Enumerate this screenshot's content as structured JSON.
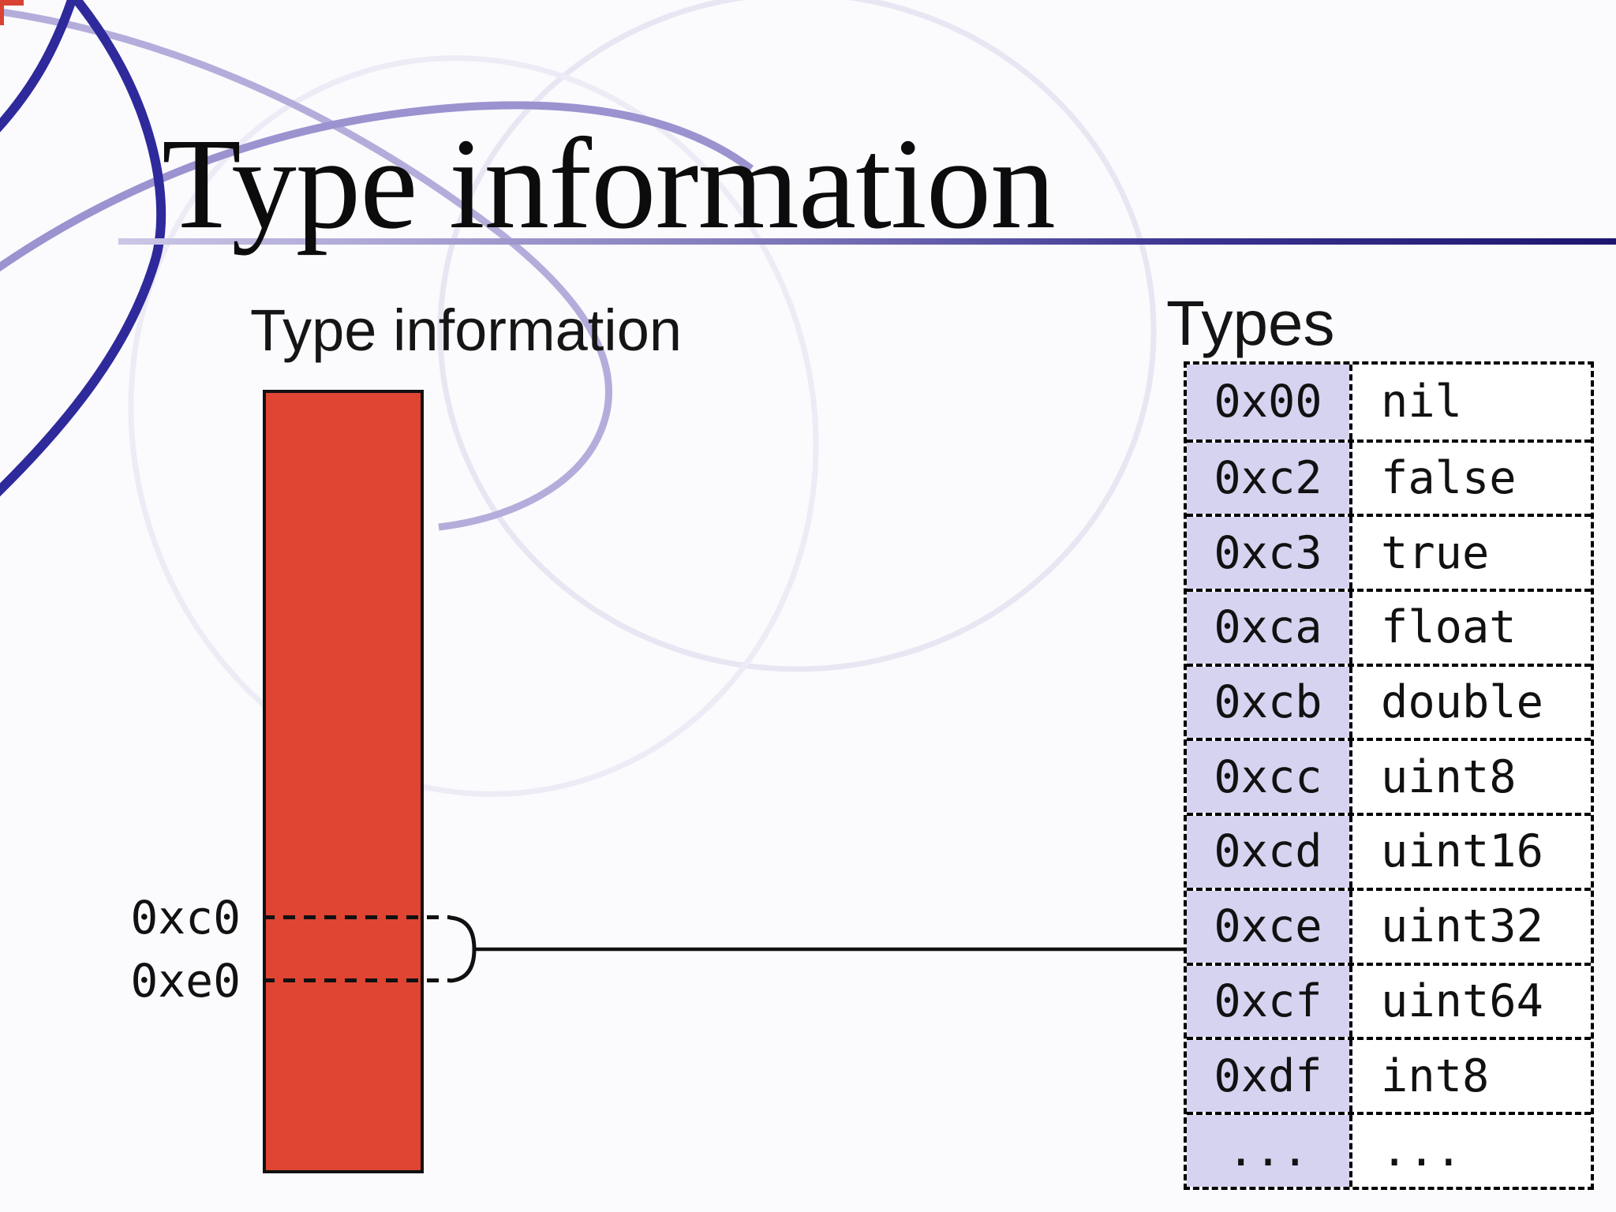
{
  "slide": {
    "title": "Type information"
  },
  "memory": {
    "label": "Type information",
    "bar_color": "#df4532",
    "markers": [
      {
        "label": "0xc0"
      },
      {
        "label": "0xe0"
      }
    ]
  },
  "types": {
    "heading": "Types",
    "code_bg": "#d6d3f0",
    "columns": [
      "code",
      "name"
    ],
    "rows": [
      {
        "code": "0x00",
        "name": "nil"
      },
      {
        "code": "0xc2",
        "name": "false"
      },
      {
        "code": "0xc3",
        "name": "true"
      },
      {
        "code": "0xca",
        "name": "float"
      },
      {
        "code": "0xcb",
        "name": "double"
      },
      {
        "code": "0xcc",
        "name": "uint8"
      },
      {
        "code": "0xcd",
        "name": "uint16"
      },
      {
        "code": "0xce",
        "name": "uint32"
      },
      {
        "code": "0xcf",
        "name": "uint64"
      },
      {
        "code": "0xdf",
        "name": "int8"
      },
      {
        "code": "...",
        "name": "..."
      }
    ]
  },
  "accent": {
    "rule_light": "#cbc7e7",
    "rule_dark": "#1d166e",
    "swirl_dark": "#2e2a9b",
    "swirl_medium": "#9a93cf",
    "swirl_light": "#b4addb",
    "corner_red": "#d94333"
  }
}
